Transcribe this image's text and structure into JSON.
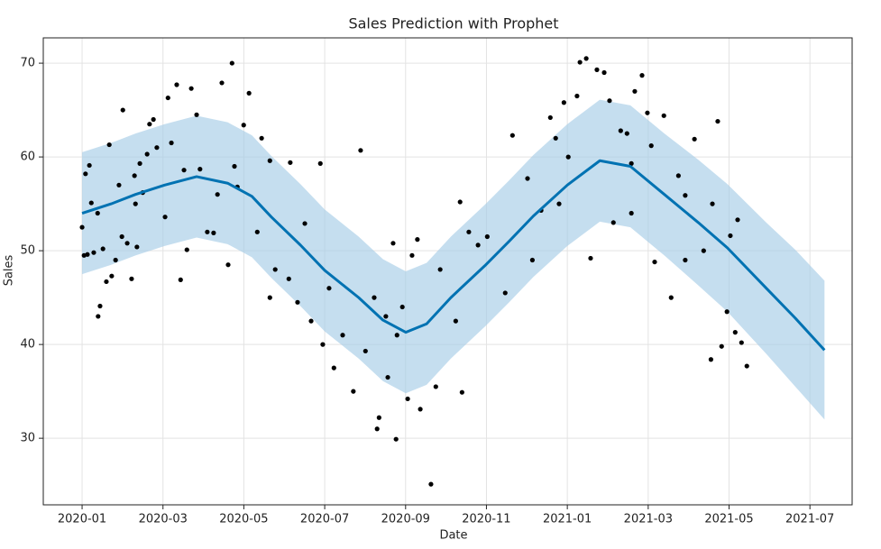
{
  "chart_data": {
    "type": "forecast",
    "title": "Sales Prediction with Prophet",
    "x_label": "Date",
    "y_label": "Sales",
    "grid": true,
    "xlim": [
      2019.92,
      2021.587
    ],
    "ylim": [
      22.9,
      72.7
    ],
    "xticks": [
      {
        "value": 2020.0,
        "label": "2020-01"
      },
      {
        "value": 2020.1667,
        "label": "2020-03"
      },
      {
        "value": 2020.3333,
        "label": "2020-05"
      },
      {
        "value": 2020.5,
        "label": "2020-07"
      },
      {
        "value": 2020.6667,
        "label": "2020-09"
      },
      {
        "value": 2020.8333,
        "label": "2020-11"
      },
      {
        "value": 2021.0,
        "label": "2021-01"
      },
      {
        "value": 2021.1667,
        "label": "2021-03"
      },
      {
        "value": 2021.3333,
        "label": "2021-05"
      },
      {
        "value": 2021.5,
        "label": "2021-07"
      }
    ],
    "yticks": [
      30,
      40,
      50,
      60,
      70
    ],
    "forecast": {
      "color": "#0072b2",
      "band_color": "#a6cde6",
      "x": [
        2020.0,
        2020.06,
        2020.11,
        2020.17,
        2020.236,
        2020.3,
        2020.35,
        2020.39,
        2020.45,
        2020.5,
        2020.57,
        2020.62,
        2020.667,
        2020.71,
        2020.76,
        2020.83,
        2020.88,
        2020.93,
        2021.0,
        2021.067,
        2021.13,
        2021.2,
        2021.27,
        2021.33,
        2021.41,
        2021.47,
        2021.53
      ],
      "values": [
        54.0,
        55.0,
        56.0,
        57.0,
        57.9,
        57.2,
        55.8,
        53.6,
        50.6,
        47.9,
        45.0,
        42.6,
        41.3,
        42.2,
        45.0,
        48.4,
        51.0,
        53.7,
        57.0,
        59.6,
        59.0,
        56.0,
        53.0,
        50.3,
        46.0,
        42.8,
        39.4
      ],
      "lower": [
        47.5,
        48.5,
        49.5,
        50.5,
        51.4,
        50.7,
        49.3,
        47.1,
        44.1,
        41.4,
        38.5,
        36.1,
        34.8,
        35.7,
        38.5,
        41.9,
        44.5,
        47.2,
        50.5,
        53.1,
        52.5,
        49.5,
        46.3,
        43.5,
        39.0,
        35.5,
        32.0
      ],
      "upper": [
        60.5,
        61.5,
        62.5,
        63.5,
        64.4,
        63.7,
        62.3,
        60.1,
        57.1,
        54.4,
        51.5,
        49.1,
        47.8,
        48.7,
        51.5,
        54.9,
        57.5,
        60.2,
        63.5,
        66.1,
        65.5,
        62.5,
        59.7,
        57.1,
        53.0,
        50.1,
        46.8
      ]
    },
    "observed": {
      "color": "#000000",
      "x": [
        2020.0,
        2020.004,
        2020.011,
        2020.007,
        2020.015,
        2020.019,
        2020.024,
        2020.032,
        2020.033,
        2020.037,
        2020.043,
        2020.05,
        2020.056,
        2020.061,
        2020.069,
        2020.076,
        2020.082,
        2020.084,
        2020.093,
        2020.102,
        2020.108,
        2020.113,
        2020.119,
        2020.125,
        2020.134,
        2020.139,
        2020.147,
        2020.154,
        2020.171,
        2020.177,
        2020.184,
        2020.195,
        2020.203,
        2020.21,
        2020.216,
        2020.225,
        2020.236,
        2020.243,
        2020.258,
        2020.271,
        2020.279,
        2020.288,
        2020.301,
        2020.309,
        2020.32,
        2020.333,
        2020.344,
        2020.37,
        2020.387,
        2020.387,
        2020.398,
        2020.429,
        2020.444,
        2020.459,
        2020.491,
        2020.496,
        2020.509,
        2020.519,
        2020.574,
        2020.537,
        2020.559,
        2020.584,
        2020.608,
        2020.612,
        2020.626,
        2020.641,
        2020.647,
        2020.63,
        2020.66,
        2020.671,
        2020.68,
        2020.697,
        2020.691,
        2020.719,
        2020.729,
        2020.738,
        2020.783,
        2020.797,
        2020.779,
        2020.816,
        2020.835,
        2020.887,
        2020.918,
        2020.946,
        2020.965,
        2020.976,
        2020.993,
        2021.002,
        2021.02,
        2021.026,
        2021.039,
        2021.048,
        2021.061,
        2021.076,
        2021.087,
        2021.095,
        2021.11,
        2021.123,
        2021.132,
        2021.139,
        2021.154,
        2021.165,
        2021.173,
        2021.18,
        2021.199,
        2021.214,
        2021.229,
        2021.243,
        2021.262,
        2021.281,
        2021.296,
        2021.299,
        2021.31,
        2021.318,
        2021.329,
        2021.336,
        2021.346,
        2021.359,
        2021.37,
        2021.351,
        2021.243,
        2021.132,
        2020.983,
        2020.872,
        2020.928,
        2020.472,
        2020.426,
        2020.361,
        2020.11,
        2020.314,
        2020.649,
        2020.77,
        2020.602
      ],
      "values": [
        52.5,
        49.5,
        49.6,
        58.2,
        59.1,
        55.1,
        49.8,
        54.0,
        43.0,
        44.1,
        50.2,
        46.7,
        61.3,
        47.3,
        49.0,
        57.0,
        51.5,
        65.0,
        50.8,
        47.0,
        58.0,
        50.4,
        59.3,
        56.2,
        60.3,
        63.5,
        64.0,
        61.0,
        53.6,
        66.3,
        61.5,
        67.7,
        46.9,
        58.6,
        50.1,
        67.3,
        64.5,
        58.7,
        52.0,
        51.9,
        56.0,
        67.9,
        48.5,
        70.0,
        56.8,
        63.4,
        66.8,
        62.0,
        45.0,
        59.6,
        48.0,
        59.4,
        44.5,
        52.9,
        59.3,
        40.0,
        46.0,
        37.5,
        60.7,
        41.0,
        35.0,
        39.3,
        31.0,
        32.2,
        43.0,
        50.8,
        29.9,
        36.5,
        44.0,
        34.2,
        49.5,
        33.1,
        51.2,
        25.1,
        35.5,
        48.0,
        34.9,
        52.0,
        55.2,
        50.6,
        51.5,
        62.3,
        57.7,
        54.3,
        64.2,
        62.0,
        65.8,
        60.0,
        66.5,
        70.1,
        70.5,
        49.2,
        69.3,
        69.0,
        66.0,
        53.0,
        62.8,
        62.5,
        59.3,
        67.0,
        68.7,
        64.7,
        61.2,
        48.8,
        64.4,
        45.0,
        58.0,
        55.9,
        61.9,
        50.0,
        38.4,
        55.0,
        63.8,
        39.8,
        43.5,
        51.6,
        41.3,
        40.2,
        37.7,
        53.3,
        49.0,
        54.0,
        55.0,
        45.5,
        49.0,
        42.5,
        47.0,
        52.0,
        55.0,
        59.0,
        41.0,
        42.5,
        45.0
      ]
    }
  }
}
